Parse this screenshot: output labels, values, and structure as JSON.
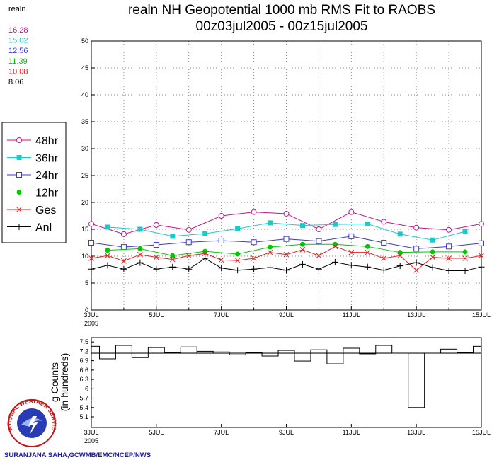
{
  "header": {
    "model": "realn"
  },
  "credit": "SURANJANA SAHA,GCWMB/EMC/NCEP/NWS",
  "logo_text": "NATIONAL WEATHER SERVICE",
  "chart_data": [
    {
      "type": "line",
      "title": "realn NH Geopotential 1000 mb RMS Fit to RAOBS",
      "subtitle": "00z03jul2005 - 00z15jul2005",
      "xlim": [
        3,
        15
      ],
      "xticks": [
        {
          "value": 3,
          "label": "3JUL"
        },
        {
          "value": 5,
          "label": "5JUL"
        },
        {
          "value": 7,
          "label": "7JUL"
        },
        {
          "value": 9,
          "label": "9JUL"
        },
        {
          "value": 11,
          "label": "11JUL"
        },
        {
          "value": 13,
          "label": "13JUL"
        },
        {
          "value": 15,
          "label": "15JUL"
        }
      ],
      "xminor": [
        4,
        6,
        8,
        10,
        12,
        14
      ],
      "x_year_label": "2005",
      "ylim": [
        0,
        50
      ],
      "yticks": [
        0,
        5,
        10,
        15,
        20,
        25,
        30,
        35,
        40,
        45,
        50
      ],
      "grid": true,
      "series": [
        {
          "name": "48hr",
          "color": "#c0148c",
          "marker": "open-circle",
          "mean": "16.28",
          "x": [
            3,
            4,
            5,
            6,
            7,
            8,
            9,
            10,
            11,
            12,
            13,
            14,
            15
          ],
          "values": [
            16.0,
            14.1,
            15.8,
            14.9,
            17.5,
            18.2,
            17.9,
            15.0,
            18.2,
            16.4,
            15.3,
            14.9,
            16.0
          ]
        },
        {
          "name": "36hr",
          "color": "#1ec8c8",
          "marker": "filled-square",
          "mean": "15.02",
          "x": [
            3.5,
            4.5,
            5.5,
            6.5,
            7.5,
            8.5,
            9.5,
            10.5,
            11.5,
            12.5,
            13.5,
            14.5
          ],
          "values": [
            15.4,
            15.0,
            13.7,
            14.2,
            15.1,
            16.2,
            15.7,
            15.9,
            16.0,
            14.1,
            13.0,
            14.6
          ]
        },
        {
          "name": "24hr",
          "color": "#3c3cd2",
          "marker": "open-square",
          "mean": "12.56",
          "x": [
            3,
            4,
            5,
            6,
            7,
            8,
            9,
            10,
            11,
            12,
            13,
            14,
            15
          ],
          "values": [
            12.5,
            11.7,
            12.1,
            12.6,
            12.9,
            12.6,
            13.2,
            12.8,
            13.7,
            12.5,
            11.4,
            11.8,
            12.4
          ]
        },
        {
          "name": "12hr",
          "color": "#00c800",
          "marker": "filled-circle",
          "mean": "11.39",
          "x": [
            3.5,
            4.5,
            5.5,
            6.5,
            7.5,
            8.5,
            9.5,
            10.5,
            11.5,
            12.5,
            13.5,
            14.5
          ],
          "values": [
            11.1,
            11.4,
            10.1,
            10.9,
            10.4,
            11.7,
            12.2,
            12.2,
            11.8,
            10.7,
            10.8,
            10.8
          ]
        },
        {
          "name": "Ges",
          "color": "#e61e1e",
          "marker": "cross",
          "mean": "10.08",
          "x": [
            3,
            3.5,
            4,
            4.5,
            5,
            5.5,
            6,
            6.5,
            7,
            7.5,
            8,
            8.5,
            9,
            9.5,
            10,
            10.5,
            11,
            11.5,
            12,
            12.5,
            13,
            13.5,
            14,
            14.5,
            15
          ],
          "values": [
            9.6,
            10.1,
            9.1,
            10.3,
            9.8,
            9.4,
            10.1,
            10.5,
            9.3,
            9.2,
            9.6,
            10.7,
            10.3,
            11.2,
            10.1,
            11.8,
            10.7,
            10.7,
            9.6,
            10.1,
            7.4,
            9.8,
            9.6,
            9.6,
            10.1
          ]
        },
        {
          "name": "Anl",
          "color": "#000000",
          "marker": "plus",
          "mean": "8.06",
          "x": [
            3,
            3.5,
            4,
            4.5,
            5,
            5.5,
            6,
            6.5,
            7,
            7.5,
            8,
            8.5,
            9,
            9.5,
            10,
            10.5,
            11,
            11.5,
            12,
            12.5,
            13,
            13.5,
            14,
            14.5,
            15
          ],
          "values": [
            7.6,
            8.3,
            7.6,
            8.8,
            7.6,
            8.0,
            7.6,
            9.6,
            7.8,
            7.4,
            7.6,
            7.9,
            7.4,
            8.5,
            7.6,
            8.9,
            8.3,
            8.0,
            7.4,
            8.2,
            8.8,
            7.9,
            7.3,
            7.3,
            8.0
          ]
        }
      ]
    },
    {
      "type": "step-bar",
      "ylabel": [
        "g Counts",
        "(in hundreds)"
      ],
      "xlim": [
        3,
        15
      ],
      "xticks": [
        {
          "value": 3,
          "label": "3JUL"
        },
        {
          "value": 5,
          "label": "5JUL"
        },
        {
          "value": 7,
          "label": "7JUL"
        },
        {
          "value": 9,
          "label": "9JUL"
        },
        {
          "value": 11,
          "label": "11JUL"
        },
        {
          "value": 13,
          "label": "13JUL"
        },
        {
          "value": 15,
          "label": "15JUL"
        }
      ],
      "x_year_label": "2005",
      "ylim": [
        4.76,
        7.64
      ],
      "yticks": [
        5.1,
        5.4,
        5.7,
        6,
        6.3,
        6.6,
        6.9,
        7.2,
        7.5
      ],
      "baseline": 7.14,
      "bar_width": 0.5,
      "x": [
        3,
        3.5,
        4,
        4.5,
        5,
        5.5,
        6,
        6.5,
        7,
        7.5,
        8,
        8.5,
        9,
        9.5,
        10,
        10.5,
        11,
        11.5,
        12,
        12.5,
        13,
        13.5,
        14,
        14.5,
        15
      ],
      "values": [
        7.36,
        6.96,
        7.39,
        7.0,
        7.32,
        7.16,
        7.34,
        7.2,
        7.18,
        7.09,
        7.16,
        7.05,
        7.23,
        6.89,
        7.25,
        6.8,
        7.3,
        7.12,
        7.39,
        7.14,
        5.4,
        7.14,
        7.27,
        7.16,
        7.36
      ]
    }
  ]
}
